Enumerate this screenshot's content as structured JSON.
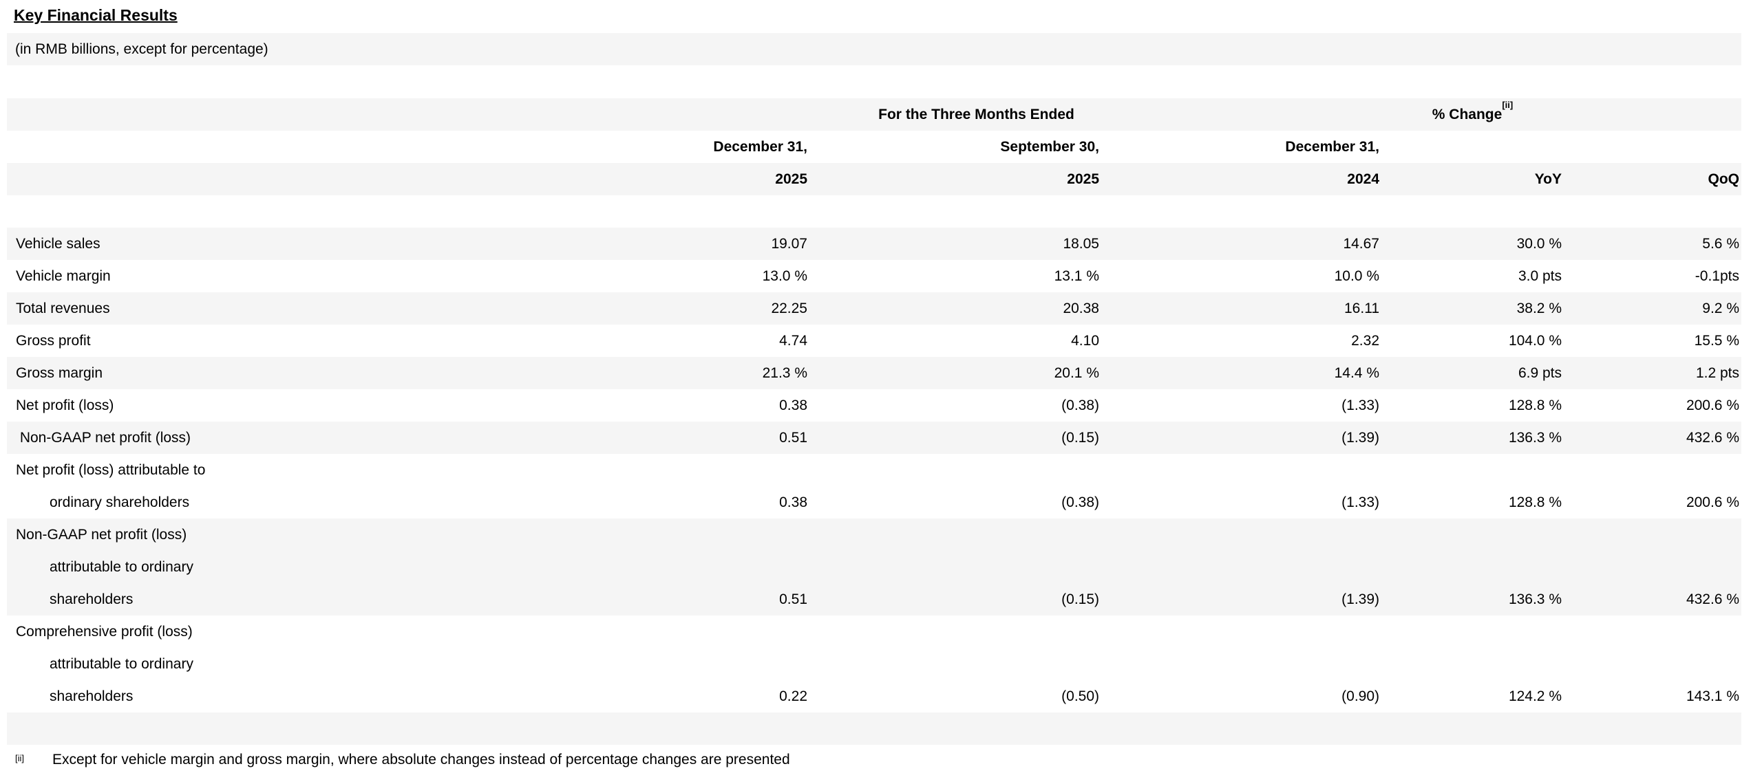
{
  "document": {
    "title": "Key Financial Results",
    "subtitle": "(in RMB billions, except for percentage)",
    "footnote": {
      "marker": "[ii]",
      "text": "Except for vehicle margin and gross margin, where absolute changes instead of percentage changes are presented"
    }
  },
  "table": {
    "span_headers": {
      "period": "For the Three Months Ended",
      "change": "% Change",
      "change_superscript": "[ii]"
    },
    "column_headers": {
      "date_line": [
        "December 31,",
        "September 30,",
        "December 31,"
      ],
      "year_line": [
        "2025",
        "2025",
        "2024",
        "YoY",
        "QoQ"
      ]
    },
    "rows": [
      {
        "label": "",
        "indent": false,
        "shade": "white",
        "values": [
          "",
          "",
          "",
          "",
          ""
        ]
      },
      {
        "label": "Vehicle sales",
        "indent": false,
        "shade": "gray",
        "values": [
          "19.07",
          "18.05",
          "14.67",
          "30.0 %",
          "5.6 %"
        ]
      },
      {
        "label": "Vehicle margin",
        "indent": false,
        "shade": "white",
        "values": [
          "13.0 %",
          "13.1 %",
          "10.0 %",
          "3.0 pts",
          "-0.1pts"
        ]
      },
      {
        "label": "Total revenues",
        "indent": false,
        "shade": "gray",
        "values": [
          "22.25",
          "20.38",
          "16.11",
          "38.2 %",
          "9.2 %"
        ]
      },
      {
        "label": "Gross profit",
        "indent": false,
        "shade": "white",
        "values": [
          "4.74",
          "4.10",
          "2.32",
          "104.0 %",
          "15.5 %"
        ]
      },
      {
        "label": "Gross margin",
        "indent": false,
        "shade": "gray",
        "values": [
          "21.3 %",
          "20.1 %",
          "14.4 %",
          "6.9 pts",
          "1.2 pts"
        ]
      },
      {
        "label": "Net profit (loss)",
        "indent": false,
        "shade": "white",
        "values": [
          "0.38",
          "(0.38)",
          "(1.33)",
          "128.8 %",
          "200.6 %"
        ]
      },
      {
        "label": " Non-GAAP net profit (loss)",
        "indent": false,
        "shade": "gray",
        "values": [
          "0.51",
          "(0.15)",
          "(1.39)",
          "136.3 %",
          "432.6 %"
        ]
      },
      {
        "label": "Net profit (loss) attributable to",
        "indent": false,
        "shade": "white",
        "values": [
          "",
          "",
          "",
          "",
          ""
        ]
      },
      {
        "label": "ordinary shareholders",
        "indent": true,
        "shade": "white",
        "values": [
          "0.38",
          "(0.38)",
          "(1.33)",
          "128.8 %",
          "200.6 %"
        ]
      },
      {
        "label": "Non-GAAP net profit (loss)",
        "indent": false,
        "shade": "gray",
        "values": [
          "",
          "",
          "",
          "",
          ""
        ]
      },
      {
        "label": "attributable to ordinary",
        "indent": true,
        "shade": "gray",
        "values": [
          "",
          "",
          "",
          "",
          ""
        ]
      },
      {
        "label": "shareholders",
        "indent": true,
        "shade": "gray",
        "values": [
          "0.51",
          "(0.15)",
          "(1.39)",
          "136.3 %",
          "432.6 %"
        ]
      },
      {
        "label": "Comprehensive profit (loss)",
        "indent": false,
        "shade": "white",
        "values": [
          "",
          "",
          "",
          "",
          ""
        ]
      },
      {
        "label": "attributable to ordinary",
        "indent": true,
        "shade": "white",
        "values": [
          "",
          "",
          "",
          "",
          ""
        ]
      },
      {
        "label": "shareholders",
        "indent": true,
        "shade": "white",
        "values": [
          "0.22",
          "(0.50)",
          "(0.90)",
          "124.2 %",
          "143.1 %"
        ]
      },
      {
        "label": "",
        "indent": false,
        "shade": "gray",
        "values": [
          "",
          "",
          "",
          "",
          ""
        ]
      }
    ]
  },
  "colors": {
    "stripe": "#f5f5f5",
    "text": "#000000",
    "background": "#ffffff"
  }
}
